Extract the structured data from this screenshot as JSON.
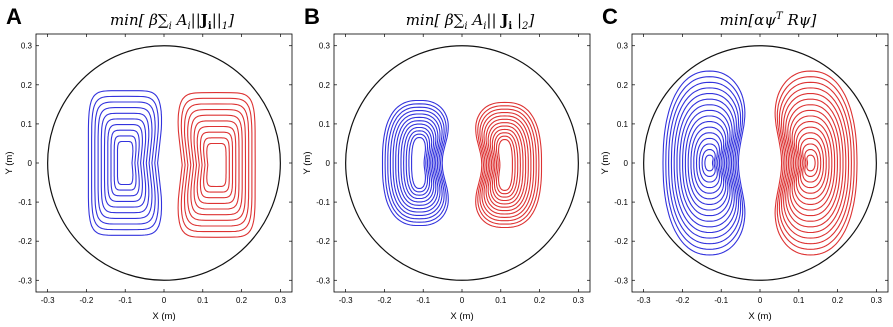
{
  "panels": [
    {
      "letter": "A",
      "title": "min[ β∑i Ai||Ji||1]",
      "xlabel": "X (m)",
      "ylabel": "Y (m)",
      "colors": {
        "left": "#3333dd",
        "right": "#dd3333",
        "boundary": "#111111"
      }
    },
    {
      "letter": "B",
      "title": "min[ β∑i Ai|| Ji |2]",
      "xlabel": "X (m)",
      "ylabel": "Y (m)",
      "colors": {
        "left": "#3333dd",
        "right": "#dd3333",
        "boundary": "#111111"
      }
    },
    {
      "letter": "C",
      "title": "min[αψT Rψ]",
      "xlabel": "X (m)",
      "ylabel": "Y (m)",
      "colors": {
        "left": "#3333dd",
        "right": "#dd3333",
        "boundary": "#111111"
      }
    }
  ],
  "chart_data": [
    {
      "type": "contour",
      "panel": "A",
      "xlim": [
        -0.33,
        0.33
      ],
      "ylim": [
        -0.33,
        0.33
      ],
      "xticks": [
        "-0.3",
        "-0.2",
        "-0.1",
        "0",
        "0.1",
        "0.2",
        "0.3"
      ],
      "yticks": [
        "0.3",
        "0.2",
        "0.1",
        "0",
        "-0.1",
        "-0.2",
        "-0.3"
      ],
      "boundary_radius": 0.3,
      "shape": "rectangular",
      "left_coil": {
        "center": [
          -0.1,
          0.0
        ],
        "outer_half_width": 0.095,
        "outer_half_height": 0.185,
        "inner_half_width": 0.02,
        "inner_half_height": 0.055,
        "turns": 10
      },
      "right_coil": {
        "center": [
          0.135,
          -0.005
        ],
        "outer_half_width": 0.1,
        "outer_half_height": 0.185,
        "inner_half_width": 0.025,
        "inner_half_height": 0.055,
        "turns": 10
      }
    },
    {
      "type": "contour",
      "panel": "B",
      "xlim": [
        -0.33,
        0.33
      ],
      "ylim": [
        -0.33,
        0.33
      ],
      "xticks": [
        "-0.3",
        "-0.2",
        "-0.1",
        "0",
        "0.1",
        "0.2",
        "0.3"
      ],
      "yticks": [
        "0.3",
        "0.2",
        "0.1",
        "0",
        "-0.1",
        "-0.2",
        "-0.3"
      ],
      "boundary_radius": 0.3,
      "shape": "kidney",
      "left_coil": {
        "center": [
          -0.11,
          0.0
        ],
        "outer_half_width": 0.095,
        "outer_half_height": 0.16,
        "inner_half_width": 0.02,
        "inner_half_height": 0.065,
        "turns": 12
      },
      "right_coil": {
        "center": [
          0.11,
          -0.005
        ],
        "outer_half_width": 0.095,
        "outer_half_height": 0.16,
        "inner_half_width": 0.02,
        "inner_half_height": 0.065,
        "turns": 12
      }
    },
    {
      "type": "contour",
      "panel": "C",
      "xlim": [
        -0.33,
        0.33
      ],
      "ylim": [
        -0.33,
        0.33
      ],
      "xticks": [
        "-0.3",
        "-0.2",
        "-0.1",
        "0",
        "0.1",
        "0.2",
        "0.3"
      ],
      "yticks": [
        "0.3",
        "0.2",
        "0.1",
        "0",
        "-0.1",
        "-0.2",
        "-0.3"
      ],
      "boundary_radius": 0.3,
      "shape": "stream",
      "left_coil": {
        "center": [
          -0.13,
          0.0
        ],
        "outer_half_width": 0.12,
        "outer_half_height": 0.235,
        "inner_half_width": 0.012,
        "inner_half_height": 0.02,
        "turns": 16
      },
      "right_coil": {
        "center": [
          0.13,
          0.0
        ],
        "outer_half_width": 0.12,
        "outer_half_height": 0.235,
        "inner_half_width": 0.012,
        "inner_half_height": 0.02,
        "turns": 16
      }
    }
  ]
}
